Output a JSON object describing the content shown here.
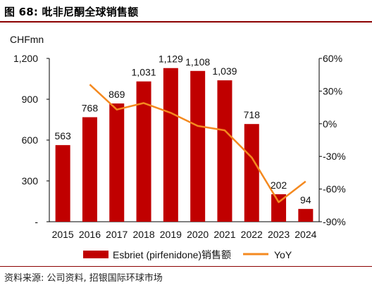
{
  "figure": {
    "title": "图 68: 吡非尼酮全球销售额",
    "source": "资料来源: 公司资料, 招银国际环球市场"
  },
  "chart_data": {
    "type": "bar",
    "categories": [
      "2015",
      "2016",
      "2017",
      "2018",
      "2019",
      "2020",
      "2021",
      "2022",
      "2023",
      "2024"
    ],
    "series": [
      {
        "name": "Esbriet (pirfenidone)销售额",
        "type": "bar",
        "axis": "left",
        "color": "#c00000",
        "values": [
          563,
          768,
          869,
          1031,
          1129,
          1108,
          1039,
          718,
          202,
          94
        ],
        "labels": [
          "563",
          "768",
          "869",
          "1,031",
          "1,129",
          "1,108",
          "1,039",
          "718",
          "202",
          "94"
        ]
      },
      {
        "name": "YoY",
        "type": "line",
        "axis": "right",
        "color": "#f4891f",
        "x": [
          "2016",
          "2017",
          "2018",
          "2019",
          "2020",
          "2021",
          "2022",
          "2023",
          "2024"
        ],
        "values": [
          36,
          13,
          19,
          10,
          -2,
          -6,
          -31,
          -72,
          -53
        ]
      }
    ],
    "ylabel": "CHFmn",
    "ylim": [
      0,
      1200
    ],
    "yticks": [
      {
        "value": 0,
        "label": "-"
      },
      {
        "value": 300,
        "label": "300"
      },
      {
        "value": 600,
        "label": "600"
      },
      {
        "value": 900,
        "label": "900"
      },
      {
        "value": 1200,
        "label": "1,200"
      }
    ],
    "y2lim": [
      -90,
      60
    ],
    "y2ticks": [
      {
        "value": -90,
        "label": "-90%"
      },
      {
        "value": -60,
        "label": "-60%"
      },
      {
        "value": -30,
        "label": "-30%"
      },
      {
        "value": 0,
        "label": "0%"
      },
      {
        "value": 30,
        "label": "30%"
      },
      {
        "value": 60,
        "label": "60%"
      }
    ],
    "grid": false,
    "legend": "bottom"
  }
}
